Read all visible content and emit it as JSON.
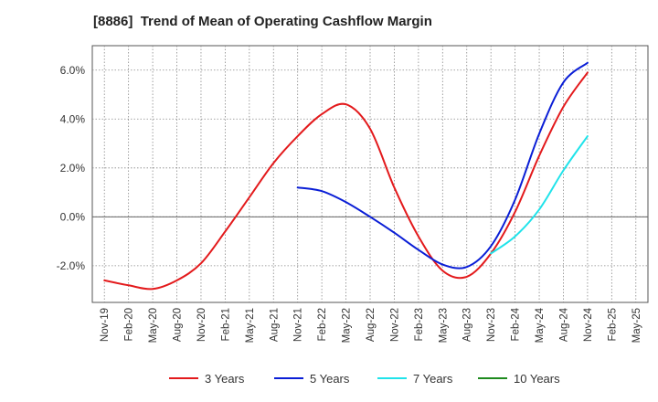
{
  "chart_data": {
    "type": "line",
    "title": "[8886]  Trend of Mean of Operating Cashflow Margin",
    "xlabel": "",
    "ylabel": "",
    "ylim": [
      -3.5,
      7.0
    ],
    "y_ticks": [
      -2.0,
      0.0,
      2.0,
      4.0,
      6.0
    ],
    "y_tick_labels": [
      "-2.0%",
      "0.0%",
      "2.0%",
      "4.0%",
      "6.0%"
    ],
    "x_tick_labels": [
      "Nov-19",
      "Feb-20",
      "May-20",
      "Aug-20",
      "Nov-20",
      "Feb-21",
      "May-21",
      "Aug-21",
      "Nov-21",
      "Feb-22",
      "May-22",
      "Aug-22",
      "Nov-22",
      "Feb-23",
      "May-23",
      "Aug-23",
      "Nov-23",
      "Feb-24",
      "May-24",
      "Aug-24",
      "Nov-24",
      "Feb-25",
      "May-25"
    ],
    "grid": true,
    "legend_position": "bottom",
    "series": [
      {
        "name": "3 Years",
        "color": "#e31a1c",
        "points": [
          [
            "Nov-19",
            -2.6
          ],
          [
            "Feb-20",
            -2.8
          ],
          [
            "May-20",
            -2.95
          ],
          [
            "Aug-20",
            -2.6
          ],
          [
            "Nov-20",
            -1.9
          ],
          [
            "Feb-21",
            -0.6
          ],
          [
            "May-21",
            0.8
          ],
          [
            "Aug-21",
            2.2
          ],
          [
            "Nov-21",
            3.3
          ],
          [
            "Feb-22",
            4.2
          ],
          [
            "May-22",
            4.6
          ],
          [
            "Aug-22",
            3.6
          ],
          [
            "Nov-22",
            1.2
          ],
          [
            "Feb-23",
            -0.8
          ],
          [
            "May-23",
            -2.2
          ],
          [
            "Aug-23",
            -2.45
          ],
          [
            "Nov-23",
            -1.5
          ],
          [
            "Feb-24",
            0.2
          ],
          [
            "May-24",
            2.5
          ],
          [
            "Aug-24",
            4.5
          ],
          [
            "Nov-24",
            5.9
          ]
        ]
      },
      {
        "name": "5 Years",
        "color": "#0a1ed6",
        "points": [
          [
            "Nov-21",
            1.2
          ],
          [
            "Feb-22",
            1.05
          ],
          [
            "May-22",
            0.6
          ],
          [
            "Aug-22",
            0.0
          ],
          [
            "Nov-22",
            -0.65
          ],
          [
            "Feb-23",
            -1.35
          ],
          [
            "May-23",
            -1.95
          ],
          [
            "Aug-23",
            -2.05
          ],
          [
            "Nov-23",
            -1.2
          ],
          [
            "Feb-24",
            0.7
          ],
          [
            "May-24",
            3.4
          ],
          [
            "Aug-24",
            5.5
          ],
          [
            "Nov-24",
            6.3
          ]
        ]
      },
      {
        "name": "7 Years",
        "color": "#20e3ea",
        "points": [
          [
            "Nov-23",
            -1.5
          ],
          [
            "Feb-24",
            -0.8
          ],
          [
            "May-24",
            0.3
          ],
          [
            "Aug-24",
            1.9
          ],
          [
            "Nov-24",
            3.3
          ]
        ]
      },
      {
        "name": "10 Years",
        "color": "#1e8a1e",
        "points": []
      }
    ]
  }
}
